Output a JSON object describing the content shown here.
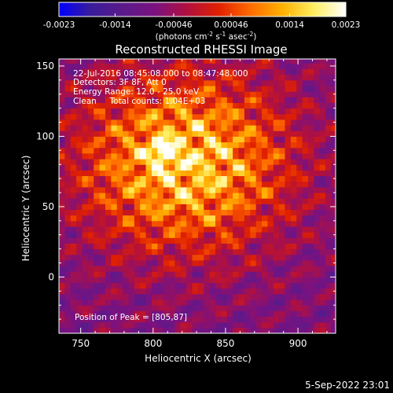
{
  "chart_data": {
    "type": "heatmap",
    "title": "Reconstructed RHESSI Image",
    "xlabel": "Heliocentric X (arcsec)",
    "ylabel": "Heliocentric Y (arcsec)",
    "xlim": [
      735,
      926
    ],
    "ylim": [
      -40,
      155
    ],
    "x_ticks": [
      750,
      800,
      850,
      900
    ],
    "y_ticks": [
      0,
      50,
      100,
      150
    ],
    "colorbar": {
      "label_main": "(photons cm",
      "label_exp1": "-2",
      "label_mid1": " s",
      "label_exp2": "-1",
      "label_mid2": " asec",
      "label_exp3": "-2",
      "label_end": ")",
      "range": [
        -0.0023,
        0.0023
      ],
      "ticks": [
        -0.0023,
        -0.0014,
        -0.00046,
        0.00046,
        0.0014,
        0.0023
      ],
      "tick_labels": [
        "-0.0023",
        "-0.0014",
        "-0.00046",
        "0.00046",
        "0.0014",
        "0.0023"
      ],
      "colormap": [
        "#0000ff",
        "#3a1c9a",
        "#5a1a8a",
        "#7a1280",
        "#b01040",
        "#e02000",
        "#ff6a00",
        "#ffb000",
        "#ffee60",
        "#ffffff"
      ]
    },
    "peak": [
      805,
      87
    ],
    "annotations": [
      "22-Jul-2016 08:45:08.000 to 08:47:48.000",
      "Detectors: 3F 8F, Att 0",
      "Energy Range: 12.0 - 25.0 keV",
      "Clean     Total counts: 1.04E+03",
      "Position of Peak = [805,87]"
    ]
  },
  "footer": {
    "timestamp": "5-Sep-2022 23:01"
  }
}
